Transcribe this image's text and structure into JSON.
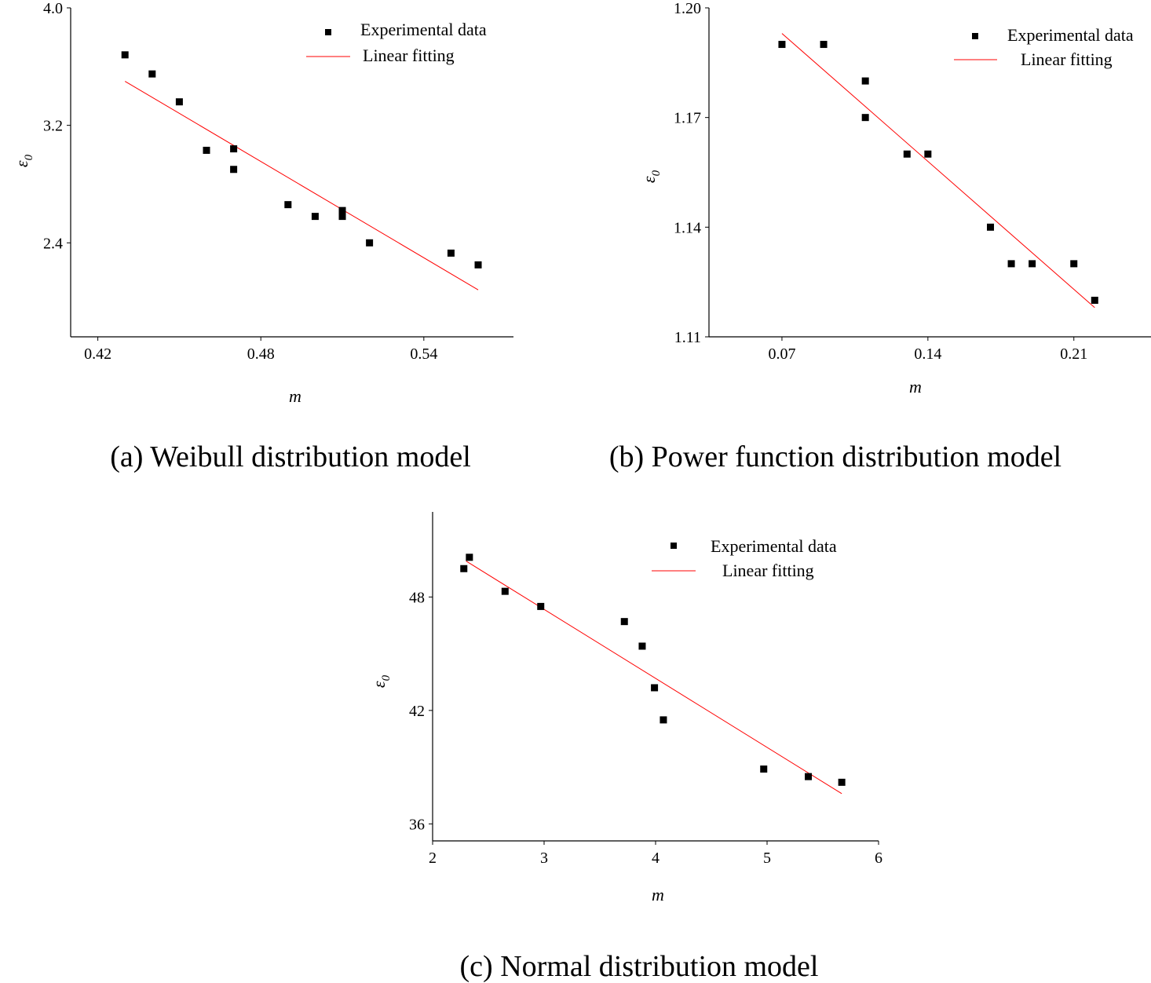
{
  "chart_data": [
    {
      "type": "scatter",
      "caption": "(a) Weibull distribution model",
      "xlabel": "m",
      "ylabel": "ε",
      "ylabel_sub": "0",
      "xlim": [
        0.41,
        0.573
      ],
      "ylim": [
        1.76,
        4.0
      ],
      "xticks": [
        0.42,
        0.48,
        0.54
      ],
      "xtick_labels": [
        "0.42",
        "0.48",
        "0.54"
      ],
      "yticks": [
        2.4,
        3.2,
        4.0
      ],
      "ytick_labels": [
        "2.4",
        "3.2",
        "4.0"
      ],
      "legend": {
        "position": "top-right",
        "scatter_label": "Experimental data",
        "line_label": "Linear fitting"
      },
      "series": [
        {
          "name": "Experimental data",
          "kind": "points",
          "color": "#000000",
          "x": [
            0.43,
            0.44,
            0.45,
            0.46,
            0.47,
            0.47,
            0.49,
            0.5,
            0.51,
            0.51,
            0.52,
            0.55,
            0.56
          ],
          "y": [
            3.68,
            3.55,
            3.36,
            3.03,
            3.04,
            2.9,
            2.66,
            2.58,
            2.62,
            2.58,
            2.4,
            2.33,
            2.25
          ]
        },
        {
          "name": "Linear fitting",
          "kind": "line",
          "color": "#ff0000",
          "x": [
            0.43,
            0.56
          ],
          "y": [
            3.5,
            2.08
          ]
        }
      ]
    },
    {
      "type": "scatter",
      "caption": "(b) Power function distribution model",
      "xlabel": "m",
      "ylabel": "ε",
      "ylabel_sub": "0",
      "xlim": [
        0.035,
        0.247
      ],
      "ylim": [
        1.11,
        1.2
      ],
      "xticks": [
        0.07,
        0.14,
        0.21
      ],
      "xtick_labels": [
        "0.07",
        "0.14",
        "0.21"
      ],
      "yticks": [
        1.11,
        1.14,
        1.17,
        1.2
      ],
      "ytick_labels": [
        "1.11",
        "1.14",
        "1.17",
        "1.20"
      ],
      "legend": {
        "position": "top-right",
        "scatter_label": "Experimental data",
        "line_label": "Linear fitting"
      },
      "series": [
        {
          "name": "Experimental data",
          "kind": "points",
          "color": "#000000",
          "x": [
            0.07,
            0.09,
            0.11,
            0.11,
            0.13,
            0.14,
            0.17,
            0.18,
            0.19,
            0.21,
            0.22
          ],
          "y": [
            1.19,
            1.19,
            1.18,
            1.17,
            1.16,
            1.16,
            1.14,
            1.13,
            1.13,
            1.13,
            1.12
          ]
        },
        {
          "name": "Linear fitting",
          "kind": "line",
          "color": "#ff0000",
          "x": [
            0.07,
            0.22
          ],
          "y": [
            1.193,
            1.118
          ]
        }
      ]
    },
    {
      "type": "scatter",
      "caption": "(c) Normal distribution model",
      "xlabel": "m",
      "ylabel": "ε",
      "ylabel_sub": "0",
      "xlim": [
        2,
        6
      ],
      "ylim": [
        35.1,
        52.5
      ],
      "xticks": [
        2,
        3,
        4,
        5,
        6
      ],
      "xtick_labels": [
        "2",
        "3",
        "4",
        "5",
        "6"
      ],
      "yticks": [
        36,
        42,
        48
      ],
      "ytick_labels": [
        "36",
        "42",
        "48"
      ],
      "legend": {
        "position": "top-right",
        "scatter_label": "Experimental data",
        "line_label": "Linear fitting"
      },
      "series": [
        {
          "name": "Experimental data",
          "kind": "points",
          "color": "#000000",
          "x": [
            2.28,
            2.33,
            2.65,
            2.97,
            3.72,
            3.88,
            3.99,
            4.07,
            4.97,
            5.37,
            5.67
          ],
          "y": [
            49.5,
            50.1,
            48.3,
            47.5,
            46.7,
            45.4,
            43.2,
            41.5,
            38.9,
            38.5,
            38.2
          ]
        },
        {
          "name": "Linear fitting",
          "kind": "line",
          "color": "#ff0000",
          "x": [
            2.3,
            5.67
          ],
          "y": [
            49.9,
            37.6
          ]
        }
      ]
    }
  ]
}
